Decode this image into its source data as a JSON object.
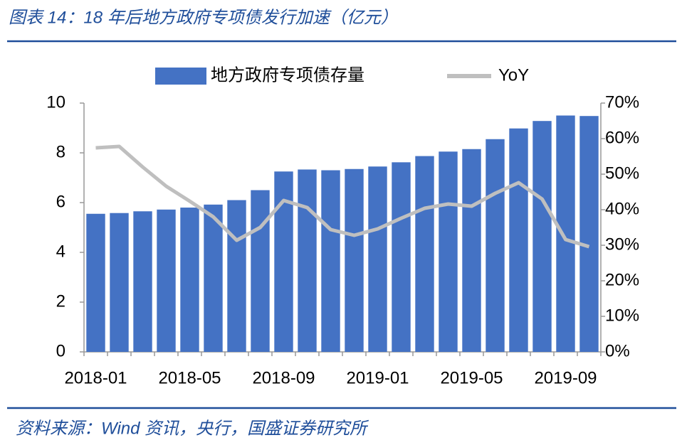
{
  "title": "图表 14：18 年后地方政府专项债发行加速（亿元）",
  "source": "资料来源：Wind 资讯，央行，国盛证券研究所",
  "chart_data": {
    "type": "bar",
    "categories": [
      "2018-01",
      null,
      null,
      null,
      "2018-05",
      null,
      null,
      null,
      "2018-09",
      null,
      null,
      null,
      "2019-01",
      null,
      null,
      null,
      "2019-05",
      null,
      null,
      null,
      "2019-09",
      null
    ],
    "series": [
      {
        "name": "地方政府专项债存量",
        "type": "bar",
        "color": "#4472c4",
        "values": [
          5.55,
          5.58,
          5.65,
          5.72,
          5.8,
          5.92,
          6.1,
          6.5,
          7.25,
          7.33,
          7.3,
          7.35,
          7.45,
          7.62,
          7.87,
          8.05,
          8.15,
          8.55,
          8.98,
          9.28,
          9.5,
          9.48
        ]
      },
      {
        "name": "YoY",
        "type": "line",
        "axis": "y2",
        "color": "#bfbfbf",
        "values": [
          57.4,
          57.8,
          52,
          46.6,
          42.4,
          38,
          31.4,
          35,
          42.6,
          40.6,
          34.4,
          32.8,
          34.6,
          37.6,
          40.4,
          41.6,
          41,
          44.6,
          47.6,
          43,
          31.6,
          29.6
        ]
      }
    ],
    "ylim": [
      0,
      10
    ],
    "yticks": [
      0,
      2,
      4,
      6,
      8,
      10
    ],
    "y2lim": [
      0,
      70
    ],
    "y2ticks": [
      {
        "value": 0,
        "label": "0%"
      },
      {
        "value": 10,
        "label": "10%"
      },
      {
        "value": 20,
        "label": "20%"
      },
      {
        "value": 30,
        "label": "30%"
      },
      {
        "value": 40,
        "label": "40%"
      },
      {
        "value": 50,
        "label": "50%"
      },
      {
        "value": 60,
        "label": "60%"
      },
      {
        "value": 70,
        "label": "70%"
      }
    ],
    "legend": "top",
    "grid": false
  }
}
